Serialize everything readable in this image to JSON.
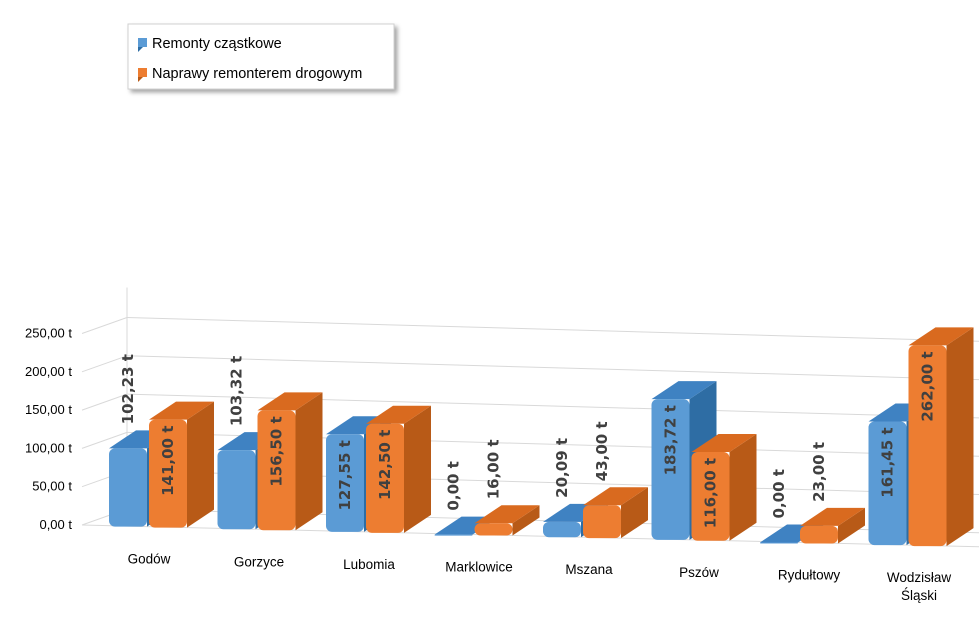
{
  "chart_data": {
    "type": "bar",
    "categories": [
      "Godów",
      "Gorzyce",
      "Lubomia",
      "Marklowice",
      "Mszana",
      "Pszów",
      "Rydułtowy",
      "Wodzisław Śląski"
    ],
    "series": [
      {
        "name": "Remonty cząstkowe",
        "values": [
          102.23,
          103.32,
          127.55,
          0.0,
          20.09,
          183.72,
          0.0,
          161.45
        ],
        "labels": [
          "102,23 t",
          "103,32 t",
          "127,55 t",
          "0,00 t",
          "20,09 t",
          "183,72 t",
          "0,00 t",
          "161,45 t"
        ],
        "color": "#5B9BD5",
        "side_color": "#2E6DA4",
        "top_color": "#3F82C2"
      },
      {
        "name": "Naprawy remonterem drogowym",
        "values": [
          141.0,
          156.5,
          142.5,
          16.0,
          43.0,
          116.0,
          23.0,
          262.0
        ],
        "labels": [
          "141,00 t",
          "156,50 t",
          "142,50 t",
          "16,00 t",
          "43,00 t",
          "116,00 t",
          "23,00 t",
          "262,00 t"
        ],
        "color": "#ED7D31",
        "side_color": "#B85A17",
        "top_color": "#D96A1F"
      }
    ],
    "yticks": [
      "0,00 t",
      "50,00 t",
      "100,00 t",
      "150,00 t",
      "200,00 t",
      "250,00 t"
    ],
    "ylim": [
      0,
      250
    ],
    "title": "",
    "xlabel": "",
    "ylabel": "",
    "grid": true,
    "legend": "top-left"
  }
}
